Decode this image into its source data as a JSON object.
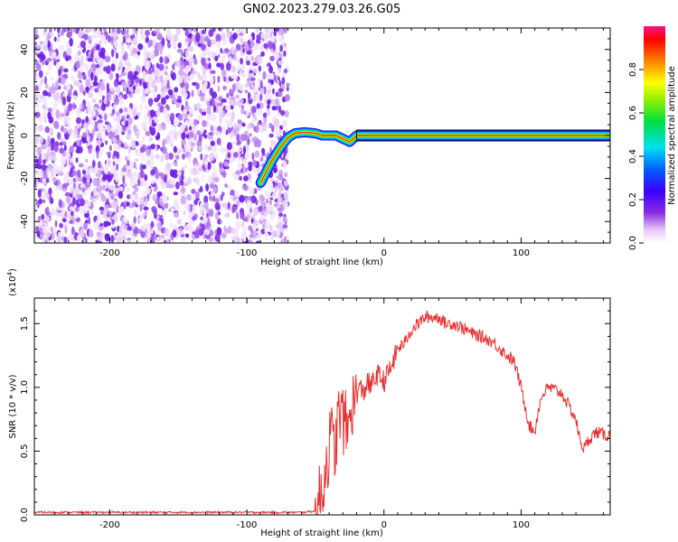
{
  "title": "GN02.2023.279.03.26.G05",
  "chart_data": [
    {
      "type": "heatmap",
      "xlabel": "Height of straight line (km)",
      "ylabel": "Frequency (Hz)",
      "xlim": [
        -255,
        165
      ],
      "ylim": [
        -50,
        50
      ],
      "xticks": [
        -200,
        -100,
        0,
        100
      ],
      "yticks": [
        -40,
        -20,
        0,
        20,
        40
      ],
      "colorbar": {
        "label": "Normalized spectral amplitude",
        "range": [
          0,
          1
        ],
        "ticks": [
          "0.0",
          "0.2",
          "0.4",
          "0.6",
          "0.8"
        ]
      },
      "noise_region_x": [
        -255,
        -70
      ],
      "signal_trace": [
        {
          "x": -90,
          "y": -22
        },
        {
          "x": -82,
          "y": -12
        },
        {
          "x": -75,
          "y": -5
        },
        {
          "x": -70,
          "y": -1
        },
        {
          "x": -65,
          "y": 1
        },
        {
          "x": -58,
          "y": 1.5
        },
        {
          "x": -50,
          "y": 1
        },
        {
          "x": -45,
          "y": 0
        },
        {
          "x": -40,
          "y": 0
        },
        {
          "x": -35,
          "y": 0
        },
        {
          "x": -30,
          "y": -1.5
        },
        {
          "x": -25,
          "y": -3
        },
        {
          "x": -20,
          "y": 0
        },
        {
          "x": 0,
          "y": 0
        },
        {
          "x": 165,
          "y": 0
        }
      ]
    },
    {
      "type": "line",
      "xlabel": "Height of straight line (km)",
      "ylabel": "SNR (10 * v/v)",
      "yexponent": "(x10",
      "yexponent_power": "4",
      "yexponent_close": ")",
      "xlim": [
        -255,
        165
      ],
      "ylim": [
        0,
        1.7
      ],
      "xticks": [
        -200,
        -100,
        0,
        100
      ],
      "yticks": [
        "0.0",
        "0.5",
        "1.0",
        "1.5"
      ],
      "series": [
        {
          "color": "#e83030",
          "points": [
            {
              "x": -255,
              "y": 0.02
            },
            {
              "x": -200,
              "y": 0.02
            },
            {
              "x": -150,
              "y": 0.02
            },
            {
              "x": -100,
              "y": 0.02
            },
            {
              "x": -60,
              "y": 0.02
            },
            {
              "x": -50,
              "y": 0.03
            },
            {
              "x": -48,
              "y": 0.08
            },
            {
              "x": -45,
              "y": 0.2
            },
            {
              "x": -42,
              "y": 0.4
            },
            {
              "x": -40,
              "y": 0.55
            },
            {
              "x": -38,
              "y": 0.6
            },
            {
              "x": -36,
              "y": 0.5
            },
            {
              "x": -34,
              "y": 0.7
            },
            {
              "x": -32,
              "y": 0.8
            },
            {
              "x": -30,
              "y": 0.75
            },
            {
              "x": -28,
              "y": 0.7
            },
            {
              "x": -26,
              "y": 0.65
            },
            {
              "x": -24,
              "y": 0.9
            },
            {
              "x": -22,
              "y": 0.85
            },
            {
              "x": -20,
              "y": 0.95
            },
            {
              "x": -18,
              "y": 1.0
            },
            {
              "x": -15,
              "y": 0.95
            },
            {
              "x": -12,
              "y": 1.05
            },
            {
              "x": -10,
              "y": 1.0
            },
            {
              "x": -5,
              "y": 1.1
            },
            {
              "x": 0,
              "y": 1.05
            },
            {
              "x": 5,
              "y": 1.15
            },
            {
              "x": 10,
              "y": 1.3
            },
            {
              "x": 15,
              "y": 1.35
            },
            {
              "x": 20,
              "y": 1.45
            },
            {
              "x": 25,
              "y": 1.5
            },
            {
              "x": 30,
              "y": 1.55
            },
            {
              "x": 35,
              "y": 1.55
            },
            {
              "x": 40,
              "y": 1.55
            },
            {
              "x": 45,
              "y": 1.5
            },
            {
              "x": 50,
              "y": 1.5
            },
            {
              "x": 55,
              "y": 1.48
            },
            {
              "x": 60,
              "y": 1.45
            },
            {
              "x": 65,
              "y": 1.42
            },
            {
              "x": 70,
              "y": 1.4
            },
            {
              "x": 75,
              "y": 1.38
            },
            {
              "x": 80,
              "y": 1.35
            },
            {
              "x": 85,
              "y": 1.3
            },
            {
              "x": 90,
              "y": 1.25
            },
            {
              "x": 95,
              "y": 1.2
            },
            {
              "x": 100,
              "y": 1.0
            },
            {
              "x": 103,
              "y": 0.85
            },
            {
              "x": 106,
              "y": 0.7
            },
            {
              "x": 110,
              "y": 0.65
            },
            {
              "x": 113,
              "y": 0.85
            },
            {
              "x": 116,
              "y": 0.95
            },
            {
              "x": 120,
              "y": 1.0
            },
            {
              "x": 125,
              "y": 0.98
            },
            {
              "x": 130,
              "y": 0.95
            },
            {
              "x": 135,
              "y": 0.85
            },
            {
              "x": 140,
              "y": 0.75
            },
            {
              "x": 143,
              "y": 0.58
            },
            {
              "x": 146,
              "y": 0.52
            },
            {
              "x": 150,
              "y": 0.6
            },
            {
              "x": 155,
              "y": 0.65
            },
            {
              "x": 160,
              "y": 0.63
            },
            {
              "x": 165,
              "y": 0.62
            }
          ]
        }
      ]
    }
  ]
}
